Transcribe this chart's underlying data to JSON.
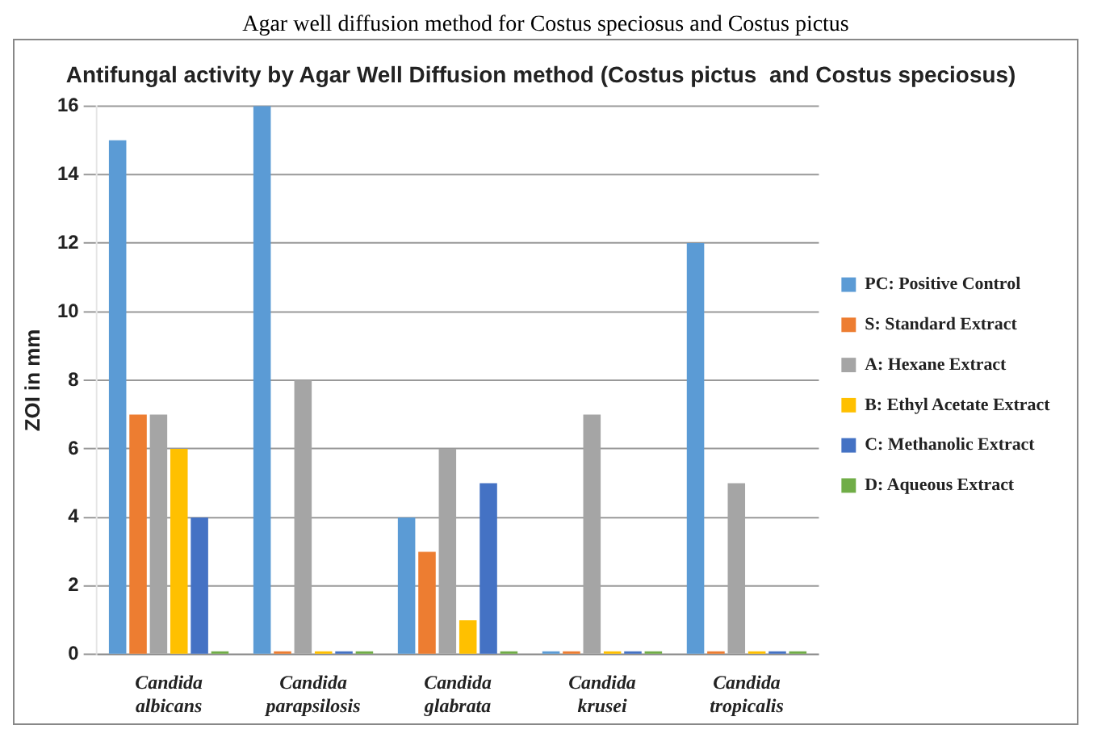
{
  "chart_data": {
    "type": "bar",
    "title": "Antifungal activity by Agar Well Diffusion method (Costus pictus  and Costus speciosus)",
    "annotations": [
      "Agar well diffusion method for Costus speciosus and Costus pictus"
    ],
    "ylabel": "ZOI in mm",
    "categories": [
      "Candida albicans",
      "Candida parapsilosis",
      "Candida glabrata",
      "Candida krusei",
      "Candida tropicalis"
    ],
    "series": [
      {
        "name": "PC: Positive Control",
        "color": "#5b9bd5",
        "values": [
          15,
          16,
          4,
          0,
          12
        ]
      },
      {
        "name": "S: Standard Extract",
        "color": "#ed7d31",
        "values": [
          7,
          0,
          3,
          0,
          0
        ]
      },
      {
        "name": "A: Hexane Extract",
        "color": "#a5a5a5",
        "values": [
          7,
          8,
          6,
          7,
          5
        ]
      },
      {
        "name": "B: Ethyl Acetate Extract",
        "color": "#ffc000",
        "values": [
          6,
          0,
          1,
          0,
          0
        ]
      },
      {
        "name": "C: Methanolic Extract",
        "color": "#4472c4",
        "values": [
          4,
          0,
          5,
          0,
          0
        ]
      },
      {
        "name": "D: Aqueous Extract",
        "color": "#70ad47",
        "values": [
          0,
          0,
          0,
          0,
          0
        ]
      }
    ],
    "ylim": [
      0,
      16
    ],
    "yticks": [
      0,
      2,
      4,
      6,
      8,
      10,
      12,
      14,
      16
    ],
    "grid": "y",
    "legend": "right"
  }
}
